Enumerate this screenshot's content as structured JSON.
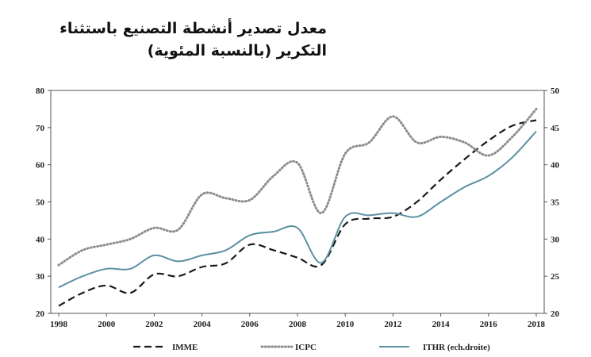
{
  "title": {
    "line1": "معدل تصدير أنشطة التصنيع باستثناء",
    "line2": "التكرير (بالنسبة المئوية)"
  },
  "chart_data": {
    "type": "line",
    "x": [
      1998,
      1999,
      2000,
      2001,
      2002,
      2003,
      2004,
      2005,
      2006,
      2007,
      2008,
      2009,
      2010,
      2011,
      2012,
      2013,
      2014,
      2015,
      2016,
      2017,
      2018
    ],
    "x_ticks": [
      1998,
      2000,
      2002,
      2004,
      2006,
      2008,
      2010,
      2012,
      2014,
      2016,
      2018
    ],
    "ylim_left": [
      20,
      80
    ],
    "yticks_left": [
      20,
      30,
      40,
      50,
      60,
      70,
      80
    ],
    "ylim_right": [
      20,
      50
    ],
    "yticks_right": [
      20,
      25,
      30,
      35,
      40,
      45,
      50
    ],
    "grid": false,
    "legend_position": "bottom",
    "series": [
      {
        "name": "IMME",
        "axis": "left",
        "style": "dashed",
        "color": "#1a1a1a",
        "values": [
          22,
          25.5,
          27.5,
          25.5,
          30.5,
          30,
          32.5,
          33.5,
          38.5,
          37,
          35,
          33,
          44,
          45.5,
          46,
          50,
          56,
          61.5,
          66.5,
          70.5,
          72
        ]
      },
      {
        "name": "ICPC",
        "axis": "left",
        "style": "dotted",
        "color": "#8c8c8c",
        "values": [
          33,
          37,
          38.5,
          40,
          43,
          42.5,
          52,
          51,
          50.5,
          57,
          60.5,
          47,
          63,
          66,
          73,
          66,
          67.5,
          66,
          62.5,
          67.5,
          75
        ]
      },
      {
        "name": "ITHR (ech.droite)",
        "axis": "right",
        "style": "solid",
        "color": "#5b90a3",
        "values": [
          23.5,
          25,
          26,
          26,
          27.8,
          27,
          27.8,
          28.5,
          30.5,
          31,
          31.5,
          26.8,
          33,
          33.2,
          33.5,
          33,
          35,
          37,
          38.5,
          41,
          44.5
        ]
      }
    ]
  }
}
